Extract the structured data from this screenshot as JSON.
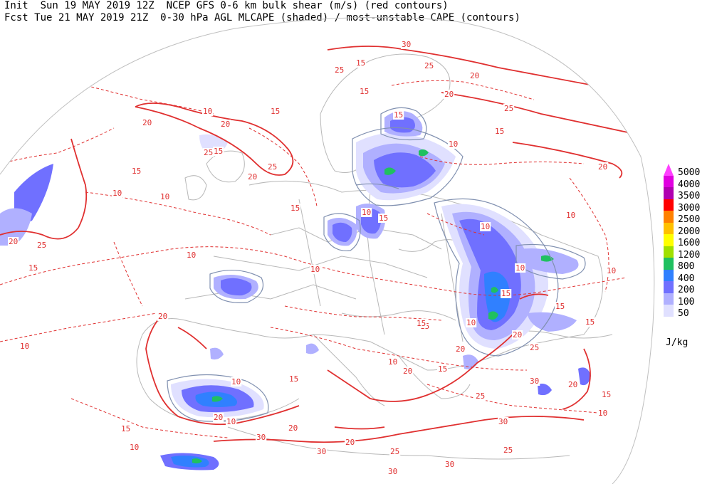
{
  "header": {
    "line1": "Init  Sun 19 MAY 2019 12Z  NCEP GFS 0-6 km bulk shear (m/s) (red contours)",
    "line2": "Fcst Tue 21 MAY 2019 21Z  0-30 hPa AGL MLCAPE (shaded) / most-unstable CAPE (contours)"
  },
  "legend": {
    "units": "J/kg",
    "levels": [
      {
        "label": "5000",
        "color": "#ff40ff"
      },
      {
        "label": "4000",
        "color": "#e000e0"
      },
      {
        "label": "3500",
        "color": "#b000b0"
      },
      {
        "label": "3000",
        "color": "#ff0000"
      },
      {
        "label": "2500",
        "color": "#ff8000"
      },
      {
        "label": "2000",
        "color": "#ffc000"
      },
      {
        "label": "1600",
        "color": "#ffff00"
      },
      {
        "label": "1200",
        "color": "#a0e000"
      },
      {
        "label": "800",
        "color": "#20c060"
      },
      {
        "label": "400",
        "color": "#3080ff"
      },
      {
        "label": "200",
        "color": "#7070ff"
      },
      {
        "label": "100",
        "color": "#b0b0ff"
      },
      {
        "label": "50",
        "color": "#e0e0ff"
      }
    ]
  },
  "shear_labels": [
    "10",
    "15",
    "20",
    "25",
    "30"
  ],
  "colors": {
    "shear": "#e03030",
    "mucape": "#8090b0",
    "land": "#b0b0b0"
  }
}
